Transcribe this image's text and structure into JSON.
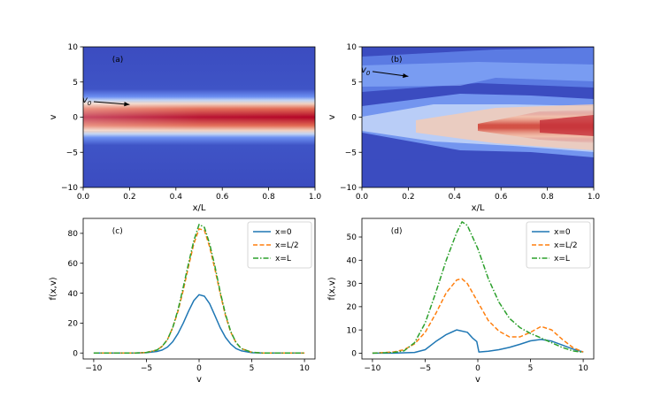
{
  "chart_data": [
    {
      "id": "a",
      "type": "heatmap",
      "panel_label": "(a)",
      "xlabel": "x/L",
      "ylabel": "v",
      "xlim": [
        0.0,
        1.0
      ],
      "ylim": [
        -10,
        10
      ],
      "xticks": [
        0.0,
        0.2,
        0.4,
        0.6,
        0.8,
        1.0
      ],
      "xtick_labels": [
        "0.0",
        "0.2",
        "0.4",
        "0.6",
        "0.8",
        "1.0"
      ],
      "yticks": [
        -10,
        -5,
        0,
        5,
        10
      ],
      "ytick_labels": [
        "−10",
        "−5",
        "0",
        "5",
        "10"
      ],
      "colormap": "coolwarm (blue low, red high)",
      "annotation": {
        "text": "v",
        "subscript": "0",
        "x_tail": 0.0,
        "y_tail": 2.2,
        "x_head": 0.2,
        "y_head": 1.8
      },
      "model": {
        "center_v": [
          0.0,
          0.0,
          0.0,
          0.0,
          0.0,
          0.0
        ],
        "width_v": 1.2,
        "peak_x": [
          0.45,
          0.8,
          0.92,
          0.96,
          0.98,
          1.0
        ]
      }
    },
    {
      "id": "b",
      "type": "heatmap",
      "panel_label": "(b)",
      "xlabel": "x/L",
      "ylabel": "v",
      "xlim": [
        0.0,
        1.0
      ],
      "ylim": [
        -10,
        10
      ],
      "xticks": [
        0.0,
        0.2,
        0.4,
        0.6,
        0.8,
        1.0
      ],
      "xtick_labels": [
        "0.0",
        "0.2",
        "0.4",
        "0.6",
        "0.8",
        "1.0"
      ],
      "yticks": [
        -10,
        -5,
        0,
        5,
        10
      ],
      "ytick_labels": [
        "−10",
        "−5",
        "0",
        "5",
        "10"
      ],
      "colormap": "coolwarm (blue low, red high)",
      "annotation": {
        "text": "v",
        "subscript": "0",
        "x_tail": 0.0,
        "y_tail": 6.5,
        "x_head": 0.2,
        "y_head": 5.8
      }
    },
    {
      "id": "c",
      "type": "line",
      "panel_label": "(c)",
      "xlabel": "v",
      "ylabel": "f(x,v)",
      "xlim": [
        -11,
        11
      ],
      "ylim": [
        -4,
        90
      ],
      "xticks": [
        -10,
        -5,
        0,
        5,
        10
      ],
      "xtick_labels": [
        "−10",
        "−5",
        "0",
        "5",
        "10"
      ],
      "yticks": [
        0,
        20,
        40,
        60,
        80
      ],
      "ytick_labels": [
        "0",
        "20",
        "40",
        "60",
        "80"
      ],
      "legend_position": "upper-right",
      "x": [
        -10,
        -8,
        -6,
        -5,
        -4,
        -3.5,
        -3,
        -2.5,
        -2,
        -1.5,
        -1,
        -0.5,
        0,
        0.5,
        1,
        1.5,
        2,
        2.5,
        3,
        3.5,
        4,
        5,
        6,
        8,
        10
      ],
      "series": [
        {
          "name": "x=0",
          "color": "#1f77b4",
          "dash": "solid",
          "values": [
            0,
            0,
            0,
            0.2,
            1.0,
            2.0,
            4.0,
            7.5,
            13,
            20,
            28,
            35,
            39,
            38,
            33,
            25,
            17,
            10.5,
            6,
            3,
            1.5,
            0.2,
            0,
            0,
            0
          ]
        },
        {
          "name": "x=L/2",
          "color": "#ff7f0e",
          "dash": "dashed",
          "values": [
            0,
            0,
            0,
            0.4,
            2,
            4.5,
            9,
            17,
            28,
            42,
            58,
            73,
            83,
            82,
            71,
            56,
            40,
            25,
            14,
            7,
            3,
            0.5,
            0,
            0,
            0
          ]
        },
        {
          "name": "x=L",
          "color": "#2ca02c",
          "dash": "dashdot",
          "values": [
            0,
            0,
            0,
            0.4,
            2,
            4.5,
            9,
            17,
            29,
            44,
            60,
            75,
            86,
            84,
            73,
            58,
            41,
            26,
            14.5,
            7,
            3,
            0.5,
            0,
            0,
            0
          ]
        }
      ]
    },
    {
      "id": "d",
      "type": "line",
      "panel_label": "(d)",
      "xlabel": "v",
      "ylabel": "f(x,v)",
      "xlim": [
        -11,
        11
      ],
      "ylim": [
        -2.5,
        58
      ],
      "xticks": [
        -10,
        -5,
        0,
        5,
        10
      ],
      "xtick_labels": [
        "−10",
        "−5",
        "0",
        "5",
        "10"
      ],
      "yticks": [
        0,
        10,
        20,
        30,
        40,
        50
      ],
      "ytick_labels": [
        "0",
        "10",
        "20",
        "30",
        "40",
        "50"
      ],
      "legend_position": "upper-right",
      "series": [
        {
          "name": "x=0",
          "color": "#1f77b4",
          "dash": "solid",
          "x": [
            -10,
            -8,
            -6,
            -5,
            -4,
            -3,
            -2,
            -1,
            -0.5,
            -0.1,
            0.1,
            1,
            2,
            3,
            4,
            5,
            6,
            7,
            8,
            9,
            10
          ],
          "values": [
            0,
            0,
            0.3,
            1.5,
            5,
            8,
            10,
            9,
            6.5,
            5,
            0.5,
            0.8,
            1.5,
            2.5,
            3.8,
            5.3,
            5.9,
            5.2,
            3.5,
            1.8,
            0.5
          ]
        },
        {
          "name": "x=L/2",
          "color": "#ff7f0e",
          "dash": "dashed",
          "x": [
            -10,
            -8,
            -7,
            -6,
            -5,
            -4,
            -3,
            -2,
            -1.5,
            -1,
            0,
            1,
            2,
            3,
            4,
            5,
            6,
            7,
            8,
            9,
            10
          ],
          "values": [
            0,
            0.5,
            1.5,
            4,
            9,
            17,
            26,
            31.5,
            32,
            30,
            22,
            14,
            9.5,
            7,
            7,
            9,
            11.5,
            10,
            6,
            2.5,
            0.5
          ]
        },
        {
          "name": "x=L",
          "color": "#2ca02c",
          "dash": "dashdot",
          "x": [
            -10,
            -8,
            -7,
            -6,
            -5,
            -4,
            -3,
            -2,
            -1.5,
            -1,
            0,
            1,
            2,
            3,
            4,
            5,
            6,
            7,
            8,
            9,
            10
          ],
          "values": [
            0,
            0.3,
            1,
            4.5,
            13,
            26,
            40,
            52,
            56.5,
            55,
            45,
            32,
            22,
            15,
            11,
            8.5,
            6.5,
            4.5,
            2.5,
            1,
            0.3
          ]
        }
      ]
    }
  ]
}
